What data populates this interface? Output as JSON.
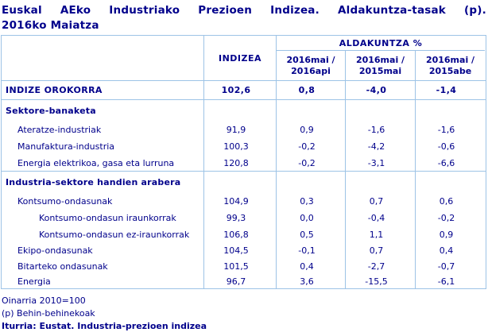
{
  "title": {
    "line1": "Euskal AEko Industriako Prezioen Indizea. Aldakuntza-tasak (p).",
    "line2": "2016ko Maiatza"
  },
  "header": {
    "indizea": "INDIZEA",
    "aldakuntza": "ALDAKUNTZA %",
    "periods": [
      {
        "top": "2016mai /",
        "bottom": "2016api"
      },
      {
        "top": "2016mai /",
        "bottom": "2015mai"
      },
      {
        "top": "2016mai /",
        "bottom": "2015abe"
      }
    ]
  },
  "rows": [
    {
      "label": "INDIZE OROKORRA",
      "values": [
        "102,6",
        "0,8",
        "-4,0",
        "-1,4"
      ]
    },
    {
      "label": "Sektore-banaketa",
      "values": [
        "",
        "",
        "",
        ""
      ]
    },
    {
      "label": "Ateratze-industriak",
      "values": [
        "91,9",
        "0,9",
        "-1,6",
        "-1,6"
      ]
    },
    {
      "label": "Manufaktura-industria",
      "values": [
        "100,3",
        "-0,2",
        "-4,2",
        "-0,6"
      ]
    },
    {
      "label": "Energia elektrikoa, gasa eta lurruna",
      "values": [
        "120,8",
        "-0,2",
        "-3,1",
        "-6,6"
      ]
    },
    {
      "label": "Industria-sektore handien arabera",
      "values": [
        "",
        "",
        "",
        ""
      ]
    },
    {
      "label": "Kontsumo-ondasunak",
      "values": [
        "104,9",
        "0,3",
        "0,7",
        "0,6"
      ]
    },
    {
      "label": "Kontsumo-ondasun iraunkorrak",
      "values": [
        "99,3",
        "0,0",
        "-0,4",
        "-0,2"
      ]
    },
    {
      "label": "Kontsumo-ondasun ez-iraunkorrak",
      "values": [
        "106,8",
        "0,5",
        "1,1",
        "0,9"
      ]
    },
    {
      "label": "Ekipo-ondasunak",
      "values": [
        "104,5",
        "-0,1",
        "0,7",
        "0,4"
      ]
    },
    {
      "label": "Bitarteko ondasunak",
      "values": [
        "101,5",
        "0,4",
        "-2,7",
        "-0,7"
      ]
    },
    {
      "label": "Energia",
      "values": [
        "96,7",
        "3,6",
        "-15,5",
        "-6,1"
      ]
    }
  ],
  "footer": {
    "base_note": "Oinarria 2010=100",
    "provisional_note": "(p) Behin-behinekoak",
    "source": "Iturria: Eustat. Industria-prezioen indizea"
  },
  "colors": {
    "text_navy": "#00008B",
    "border_light_blue": "#9DC3E6",
    "background": "#FFFFFF"
  }
}
